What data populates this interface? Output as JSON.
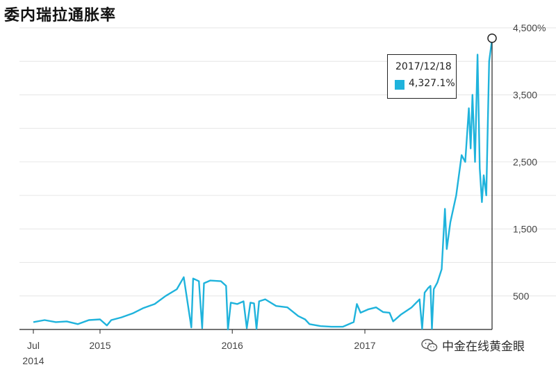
{
  "chart_data": {
    "type": "line",
    "title": "委内瑞拉通胀率",
    "ylim": [
      0,
      4500
    ],
    "y_ticks": [
      {
        "value": 500,
        "label": "500"
      },
      {
        "value": 1500,
        "label": "1,500"
      },
      {
        "value": 2500,
        "label": "2,500"
      },
      {
        "value": 3500,
        "label": "3,500"
      },
      {
        "value": 4500,
        "label": "4,500%"
      }
    ],
    "x_range": [
      "2014-07-01",
      "2017-12-18"
    ],
    "x_ticks": [
      {
        "date": "2014-07-01",
        "label": "Jul",
        "sublabel": "2014"
      },
      {
        "date": "2015-01-01",
        "label": "2015",
        "sublabel": ""
      },
      {
        "date": "2016-01-01",
        "label": "2016",
        "sublabel": ""
      },
      {
        "date": "2017-01-01",
        "label": "2017",
        "sublabel": ""
      }
    ],
    "grid": true,
    "series": [
      {
        "color": "#1fb3dc",
        "points": [
          [
            "2014-07-01",
            110
          ],
          [
            "2014-08-01",
            140
          ],
          [
            "2014-09-01",
            110
          ],
          [
            "2014-10-01",
            120
          ],
          [
            "2014-11-01",
            80
          ],
          [
            "2014-12-01",
            140
          ],
          [
            "2015-01-01",
            150
          ],
          [
            "2015-01-20",
            60
          ],
          [
            "2015-02-01",
            140
          ],
          [
            "2015-03-01",
            180
          ],
          [
            "2015-04-01",
            240
          ],
          [
            "2015-05-01",
            320
          ],
          [
            "2015-06-01",
            380
          ],
          [
            "2015-07-01",
            500
          ],
          [
            "2015-08-01",
            600
          ],
          [
            "2015-08-20",
            780
          ],
          [
            "2015-09-10",
            30
          ],
          [
            "2015-09-15",
            760
          ],
          [
            "2015-10-01",
            720
          ],
          [
            "2015-10-10",
            20
          ],
          [
            "2015-10-15",
            690
          ],
          [
            "2015-11-01",
            730
          ],
          [
            "2015-12-01",
            720
          ],
          [
            "2015-12-15",
            650
          ],
          [
            "2015-12-20",
            0
          ],
          [
            "2015-12-28",
            400
          ],
          [
            "2016-01-15",
            380
          ],
          [
            "2016-02-01",
            420
          ],
          [
            "2016-02-10",
            20
          ],
          [
            "2016-02-20",
            400
          ],
          [
            "2016-03-01",
            390
          ],
          [
            "2016-03-08",
            10
          ],
          [
            "2016-03-15",
            420
          ],
          [
            "2016-04-01",
            450
          ],
          [
            "2016-05-01",
            350
          ],
          [
            "2016-06-01",
            330
          ],
          [
            "2016-07-01",
            200
          ],
          [
            "2016-07-20",
            150
          ],
          [
            "2016-08-01",
            80
          ],
          [
            "2016-09-01",
            50
          ],
          [
            "2016-10-01",
            40
          ],
          [
            "2016-11-01",
            40
          ],
          [
            "2016-12-01",
            110
          ],
          [
            "2016-12-10",
            380
          ],
          [
            "2016-12-20",
            250
          ],
          [
            "2017-01-10",
            300
          ],
          [
            "2017-02-01",
            330
          ],
          [
            "2017-02-20",
            260
          ],
          [
            "2017-03-10",
            250
          ],
          [
            "2017-03-20",
            120
          ],
          [
            "2017-04-10",
            220
          ],
          [
            "2017-05-10",
            330
          ],
          [
            "2017-06-01",
            450
          ],
          [
            "2017-06-08",
            10
          ],
          [
            "2017-06-15",
            550
          ],
          [
            "2017-06-25",
            620
          ],
          [
            "2017-07-01",
            650
          ],
          [
            "2017-07-05",
            10
          ],
          [
            "2017-07-10",
            600
          ],
          [
            "2017-07-20",
            700
          ],
          [
            "2017-08-01",
            900
          ],
          [
            "2017-08-10",
            1800
          ],
          [
            "2017-08-15",
            1200
          ],
          [
            "2017-08-25",
            1600
          ],
          [
            "2017-09-10",
            2000
          ],
          [
            "2017-09-25",
            2600
          ],
          [
            "2017-10-05",
            2500
          ],
          [
            "2017-10-15",
            3300
          ],
          [
            "2017-10-20",
            2700
          ],
          [
            "2017-10-25",
            3500
          ],
          [
            "2017-11-01",
            2500
          ],
          [
            "2017-11-08",
            4100
          ],
          [
            "2017-11-14",
            2400
          ],
          [
            "2017-11-20",
            1900
          ],
          [
            "2017-11-25",
            2300
          ],
          [
            "2017-12-02",
            2000
          ],
          [
            "2017-12-10",
            4000
          ],
          [
            "2017-12-18",
            4327.1
          ]
        ]
      }
    ],
    "highlight": {
      "date": "2017-12-18",
      "value": 4327.1,
      "date_label": "2017/12/18",
      "value_label": "4,327.1%"
    }
  },
  "watermark": {
    "text": "中金在线黄金眼",
    "icon": "wechat-icon"
  },
  "colors": {
    "line": "#1fb3dc",
    "grid": "#e6e6e6",
    "axis": "#222222",
    "text": "#444444"
  }
}
